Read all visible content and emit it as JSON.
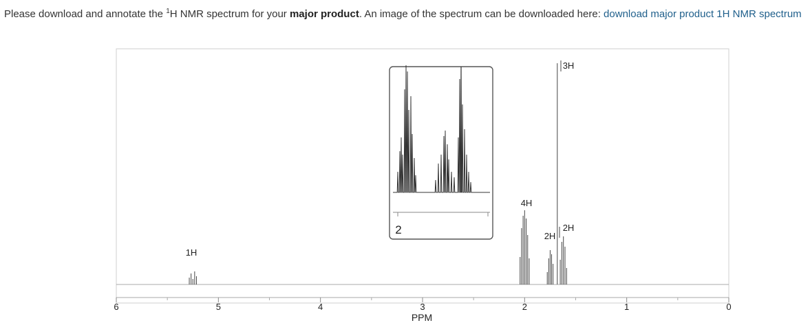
{
  "instructions": {
    "lead": "Please download and annotate the ",
    "sup": "1",
    "nucleus": "H NMR spectrum for your ",
    "bold": "major product",
    "tail": ". An image of the spectrum can be downloaded here: ",
    "link_text": "download major product 1H NMR spectrum"
  },
  "chart_data": {
    "type": "line",
    "title": "",
    "xlabel": "PPM",
    "ylabel": "",
    "x_reversed": true,
    "xlim": [
      6,
      0
    ],
    "x_ticks": [
      6,
      5,
      4,
      3,
      2,
      1,
      0
    ],
    "grid": false,
    "peaks": [
      {
        "shift": 5.25,
        "integration": "1H"
      },
      {
        "shift": 2.0,
        "integration": "4H"
      },
      {
        "shift": 1.75,
        "integration": "2H"
      },
      {
        "shift": 1.68,
        "integration": "3H"
      },
      {
        "shift": 1.62,
        "integration": "2H"
      }
    ],
    "inset": {
      "tick_label": "2"
    }
  }
}
